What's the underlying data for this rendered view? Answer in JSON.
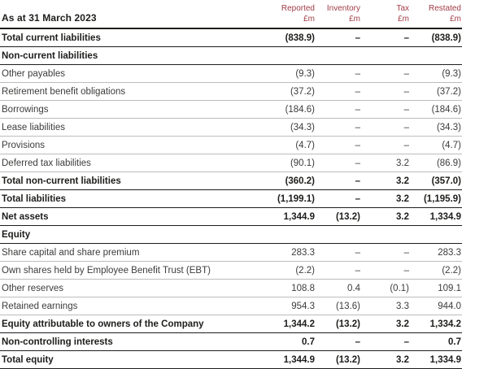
{
  "colors": {
    "accent_red": "#a03c46",
    "body_text": "#3c3c3b",
    "bold_text": "#1d1d1b",
    "light_rule": "#bcbcbc",
    "dark_rule": "#1d1d1b"
  },
  "table": {
    "title": "As at 31 March 2023",
    "columns": [
      {
        "name": "Reported",
        "unit": "£m"
      },
      {
        "name": "Inventory",
        "unit": "£m"
      },
      {
        "name": "Tax",
        "unit": "£m"
      },
      {
        "name": "Restated",
        "unit": "£m"
      }
    ],
    "rows": [
      {
        "label": "Total current liabilities",
        "style": "total",
        "values": [
          "(838.9)",
          "–",
          "–",
          "(838.9)"
        ]
      },
      {
        "label": "Non-current liabilities",
        "style": "section",
        "values": [
          "",
          "",
          "",
          ""
        ]
      },
      {
        "label": "Other payables",
        "style": "regular",
        "values": [
          "(9.3)",
          "–",
          "–",
          "(9.3)"
        ]
      },
      {
        "label": "Retirement benefit obligations",
        "style": "regular",
        "values": [
          "(37.2)",
          "–",
          "–",
          "(37.2)"
        ]
      },
      {
        "label": "Borrowings",
        "style": "regular",
        "values": [
          "(184.6)",
          "–",
          "–",
          "(184.6)"
        ]
      },
      {
        "label": "Lease liabilities",
        "style": "regular",
        "values": [
          "(34.3)",
          "–",
          "–",
          "(34.3)"
        ]
      },
      {
        "label": "Provisions",
        "style": "regular",
        "values": [
          "(4.7)",
          "–",
          "–",
          "(4.7)"
        ]
      },
      {
        "label": "Deferred tax liabilities",
        "style": "regular",
        "values": [
          "(90.1)",
          "–",
          "3.2",
          "(86.9)"
        ]
      },
      {
        "label": "Total non-current liabilities",
        "style": "total",
        "values": [
          "(360.2)",
          "–",
          "3.2",
          "(357.0)"
        ]
      },
      {
        "label": "Total liabilities",
        "style": "total",
        "values": [
          "(1,199.1)",
          "–",
          "3.2",
          "(1,195.9)"
        ]
      },
      {
        "label": "Net assets",
        "style": "total",
        "values": [
          "1,344.9",
          "(13.2)",
          "3.2",
          "1,334.9"
        ]
      },
      {
        "label": "Equity",
        "style": "section",
        "values": [
          "",
          "",
          "",
          ""
        ]
      },
      {
        "label": "Share capital and share premium",
        "style": "regular",
        "values": [
          "283.3",
          "–",
          "–",
          "283.3"
        ]
      },
      {
        "label": "Own shares held by Employee Benefit Trust (EBT)",
        "style": "regular",
        "values": [
          "(2.2)",
          "–",
          "–",
          "(2.2)"
        ]
      },
      {
        "label": "Other reserves",
        "style": "regular",
        "values": [
          "108.8",
          "0.4",
          "(0.1)",
          "109.1"
        ]
      },
      {
        "label": "Retained earnings",
        "style": "regular",
        "values": [
          "954.3",
          "(13.6)",
          "3.3",
          "944.0"
        ]
      },
      {
        "label": "Equity attributable to owners of the Company",
        "style": "total",
        "values": [
          "1,344.2",
          "(13.2)",
          "3.2",
          "1,334.2"
        ]
      },
      {
        "label": "Non-controlling interests",
        "style": "total",
        "values": [
          "0.7",
          "–",
          "–",
          "0.7"
        ]
      },
      {
        "label": "Total equity",
        "style": "total",
        "values": [
          "1,344.9",
          "(13.2)",
          "3.2",
          "1,334.9"
        ]
      }
    ]
  }
}
